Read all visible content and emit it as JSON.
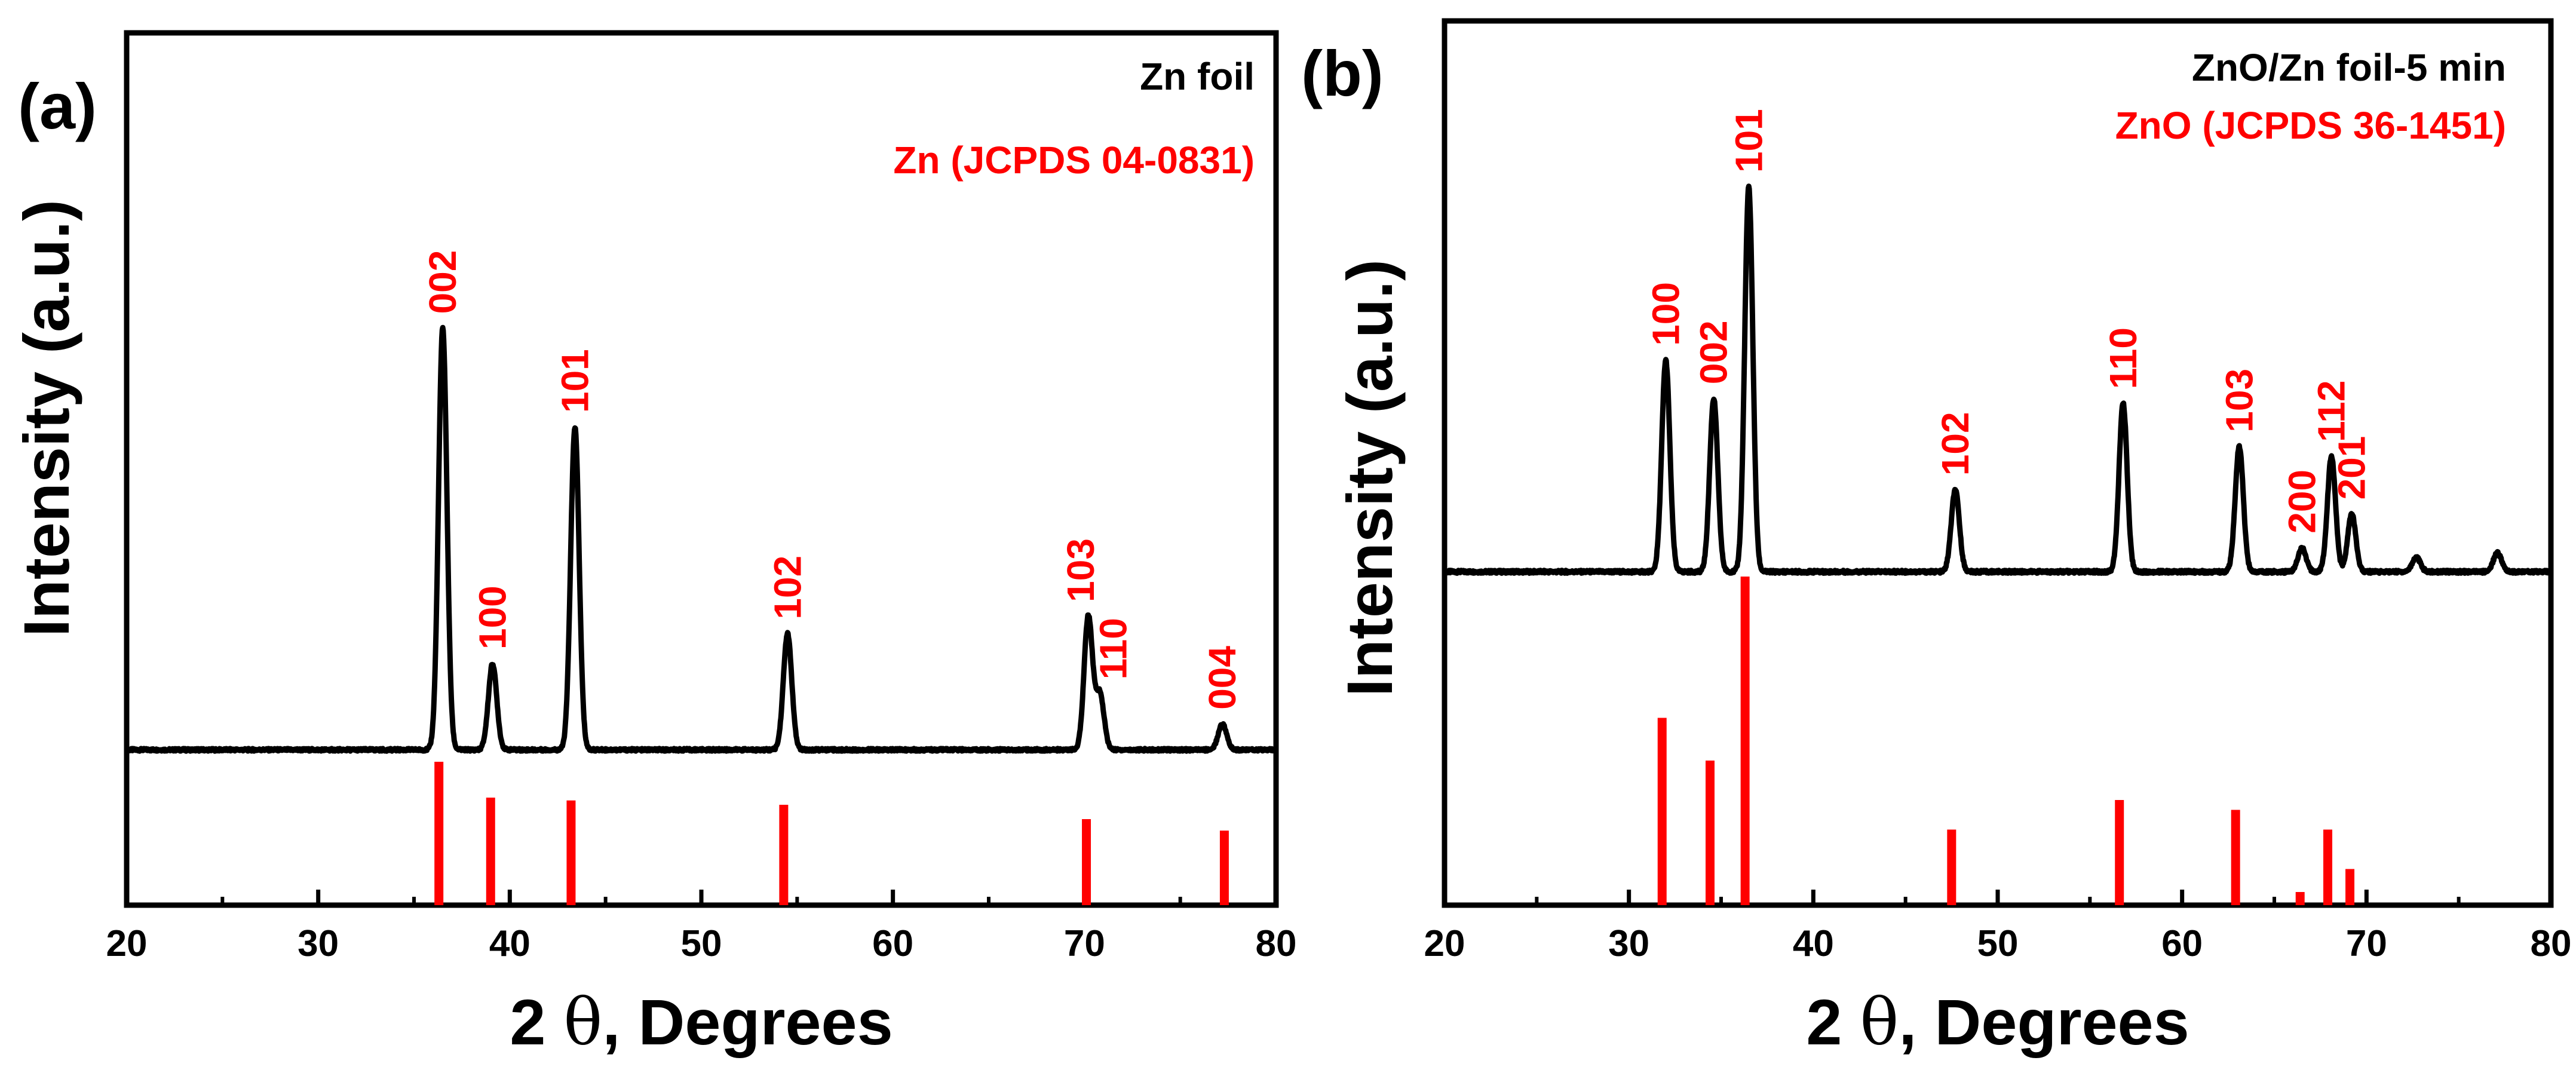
{
  "chart_data": [
    {
      "type": "line",
      "panel_label": "(a)",
      "xlabel_prefix": "2 ",
      "xlabel_symbol": "θ",
      "xlabel_suffix": ", Degrees",
      "ylabel": "Intensity (a.u.)",
      "xlim": [
        20,
        80
      ],
      "x_ticks": [
        20,
        30,
        40,
        50,
        60,
        70,
        80
      ],
      "legend": [
        "Zn foil",
        "Zn (JCPDS 04-0831)"
      ],
      "legend_colors": [
        "#000000",
        "#ff0000"
      ],
      "legend_placement": "top-right",
      "grid": false,
      "pattern_color": "#000000",
      "reference_color": "#ff0000",
      "baseline": 2,
      "peaks": [
        {
          "hkl": "002",
          "x": 36.5,
          "height": 98
        },
        {
          "hkl": "100",
          "x": 39.1,
          "height": 20
        },
        {
          "hkl": "101",
          "x": 43.4,
          "height": 75
        },
        {
          "hkl": "102",
          "x": 54.5,
          "height": 27
        },
        {
          "hkl": "103",
          "x": 70.2,
          "height": 31
        },
        {
          "hkl": "110",
          "x": 70.8,
          "height": 13
        },
        {
          "hkl": "004",
          "x": 77.2,
          "height": 6
        }
      ],
      "peak_labels": [
        {
          "hkl": "002",
          "x": 36.5
        },
        {
          "hkl": "100",
          "x": 39.1
        },
        {
          "hkl": "101",
          "x": 43.4
        },
        {
          "hkl": "102",
          "x": 54.5
        },
        {
          "hkl": "103",
          "x": 69.8
        },
        {
          "hkl": "110",
          "x": 71.5
        },
        {
          "hkl": "004",
          "x": 77.2
        }
      ],
      "reference_lines": [
        {
          "x": 36.3,
          "intensity": 100
        },
        {
          "x": 39.0,
          "intensity": 75
        },
        {
          "x": 43.2,
          "intensity": 73
        },
        {
          "x": 54.3,
          "intensity": 70
        },
        {
          "x": 70.1,
          "intensity": 60
        },
        {
          "x": 77.3,
          "intensity": 52
        }
      ]
    },
    {
      "type": "line",
      "panel_label": "(b)",
      "xlabel_prefix": "2 ",
      "xlabel_symbol": "θ",
      "xlabel_suffix": ", Degrees",
      "ylabel": "Intensity (a.u.)",
      "xlim": [
        20,
        80
      ],
      "x_ticks": [
        20,
        30,
        40,
        50,
        60,
        70,
        80
      ],
      "legend": [
        "ZnO/Zn foil-5 min",
        "ZnO (JCPDS 36-1451)"
      ],
      "legend_colors": [
        "#000000",
        "#ff0000"
      ],
      "legend_placement": "top-right",
      "grid": false,
      "pattern_color": "#000000",
      "reference_color": "#ff0000",
      "baseline": 2,
      "peaks": [
        {
          "hkl": "100",
          "x": 32.0,
          "height": 44
        },
        {
          "hkl": "002",
          "x": 34.6,
          "height": 36
        },
        {
          "hkl": "101",
          "x": 36.5,
          "height": 80
        },
        {
          "hkl": "102",
          "x": 47.7,
          "height": 17
        },
        {
          "hkl": "110",
          "x": 56.8,
          "height": 35
        },
        {
          "hkl": "103",
          "x": 63.1,
          "height": 26
        },
        {
          "hkl": "200",
          "x": 66.5,
          "height": 5
        },
        {
          "hkl": "112",
          "x": 68.1,
          "height": 24
        },
        {
          "hkl": "201",
          "x": 69.2,
          "height": 12
        },
        {
          "hkl": "",
          "x": 72.7,
          "height": 3
        },
        {
          "hkl": "",
          "x": 77.1,
          "height": 4
        }
      ],
      "peak_labels": [
        {
          "hkl": "100",
          "x": 32.0
        },
        {
          "hkl": "002",
          "x": 34.6
        },
        {
          "hkl": "101",
          "x": 36.5
        },
        {
          "hkl": "102",
          "x": 47.7
        },
        {
          "hkl": "110",
          "x": 56.8
        },
        {
          "hkl": "103",
          "x": 63.1
        },
        {
          "hkl": "200",
          "x": 66.5
        },
        {
          "hkl": "112",
          "x": 68.1
        },
        {
          "hkl": "201",
          "x": 69.2
        }
      ],
      "reference_lines": [
        {
          "x": 31.8,
          "intensity": 57
        },
        {
          "x": 34.4,
          "intensity": 44
        },
        {
          "x": 36.3,
          "intensity": 100
        },
        {
          "x": 47.5,
          "intensity": 23
        },
        {
          "x": 56.6,
          "intensity": 32
        },
        {
          "x": 62.9,
          "intensity": 29
        },
        {
          "x": 66.4,
          "intensity": 4
        },
        {
          "x": 67.9,
          "intensity": 23
        },
        {
          "x": 69.1,
          "intensity": 11
        }
      ]
    }
  ]
}
